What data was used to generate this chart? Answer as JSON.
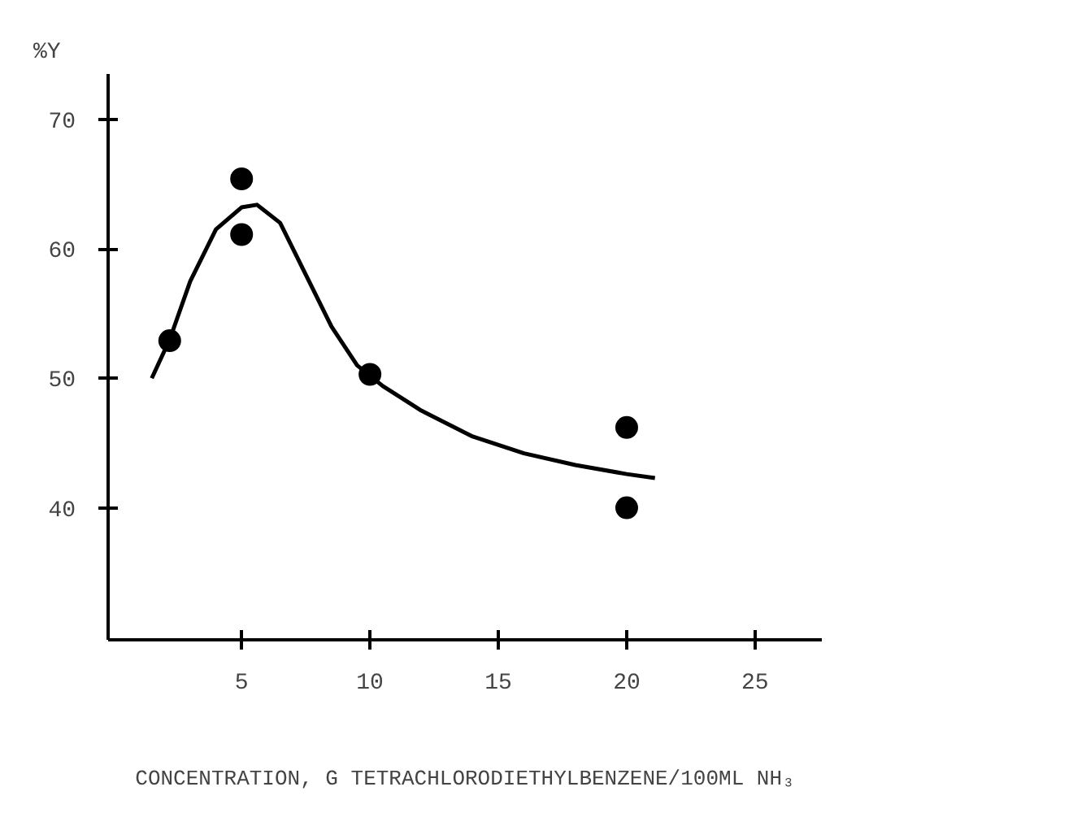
{
  "chart_data": {
    "type": "scatter",
    "xlabel": "CONCENTRATION, G TETRACHLORODIETHYLBENZENE/100ML NH₃",
    "ylabel": "%Y",
    "xlim": [
      -0.2,
      27.6
    ],
    "ylim": [
      29.8,
      73.5
    ],
    "xticks": [
      5,
      10,
      15,
      20,
      25
    ],
    "yticks": [
      40,
      50,
      60,
      70
    ],
    "grid": false,
    "marker": "circle",
    "series": [
      {
        "color": "#000000",
        "x": [
          2.2,
          5,
          5,
          10,
          20,
          20
        ],
        "values": [
          52.9,
          65.4,
          61.1,
          50.3,
          46.2,
          40.0
        ]
      },
      {
        "type": "line",
        "color": "#000000",
        "marker": "none",
        "x": [
          1.5,
          2.2,
          3,
          4,
          5,
          5.6,
          6.5,
          7.5,
          8.5,
          9.5,
          10.5,
          12,
          14,
          16,
          18,
          20,
          21.1
        ],
        "values": [
          50,
          53,
          57.5,
          61.5,
          63.2,
          63.4,
          62,
          58,
          54,
          51,
          49.4,
          47.5,
          45.5,
          44.2,
          43.3,
          42.6,
          42.3
        ]
      }
    ]
  }
}
